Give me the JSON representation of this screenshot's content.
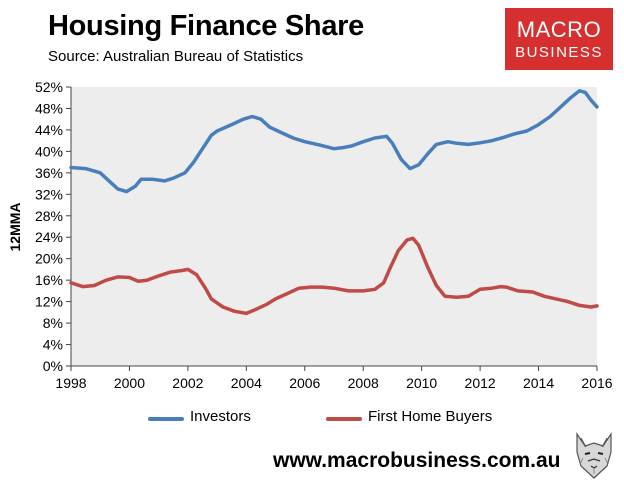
{
  "header": {
    "title": "Housing Finance Share",
    "subtitle": "Source: Australian Bureau of Statistics"
  },
  "logo": {
    "line1": "MACRO",
    "line2": "BUSINESS"
  },
  "footer": {
    "url": "www.macrobusiness.com.au"
  },
  "colors": {
    "investors": "#4a7ebb",
    "first_home_buyers": "#be4b48",
    "plot_bg": "#ededed",
    "brand_red": "#d62f2f"
  },
  "chart_data": {
    "type": "line",
    "title": "Housing Finance Share",
    "ylabel": "12MMA",
    "xlabel": "",
    "xlim": [
      1998,
      2016
    ],
    "ylim": [
      0,
      52
    ],
    "x_ticks": [
      1998,
      2000,
      2002,
      2004,
      2006,
      2008,
      2010,
      2012,
      2014,
      2016
    ],
    "x_tick_labels": [
      "1998",
      "2000",
      "2002",
      "2004",
      "2006",
      "2008",
      "2010",
      "2012",
      "2014",
      "2016"
    ],
    "y_ticks": [
      0,
      4,
      8,
      12,
      16,
      20,
      24,
      28,
      32,
      36,
      40,
      44,
      48,
      52
    ],
    "y_tick_labels": [
      "0%",
      "4%",
      "8%",
      "12%",
      "16%",
      "20%",
      "24%",
      "28%",
      "32%",
      "36%",
      "40%",
      "44%",
      "48%",
      "52%"
    ],
    "grid": false,
    "legend_position": "bottom",
    "series": [
      {
        "name": "Investors",
        "color": "#4a7ebb",
        "x": [
          1998.0,
          1998.5,
          1999.0,
          1999.3,
          1999.6,
          1999.9,
          2000.2,
          2000.4,
          2000.8,
          2001.2,
          2001.5,
          2001.9,
          2002.2,
          2002.5,
          2002.8,
          2003.0,
          2003.5,
          2003.9,
          2004.2,
          2004.5,
          2004.8,
          2005.2,
          2005.6,
          2006.0,
          2006.5,
          2007.0,
          2007.3,
          2007.6,
          2008.0,
          2008.4,
          2008.8,
          2009.0,
          2009.3,
          2009.6,
          2009.9,
          2010.2,
          2010.5,
          2010.9,
          2011.2,
          2011.6,
          2012.0,
          2012.4,
          2012.8,
          2013.2,
          2013.6,
          2014.0,
          2014.4,
          2014.8,
          2015.1,
          2015.4,
          2015.6,
          2015.8,
          2016.0
        ],
        "values": [
          37.0,
          36.8,
          36.0,
          34.5,
          33.0,
          32.5,
          33.5,
          34.8,
          34.8,
          34.5,
          35.0,
          36.0,
          38.0,
          40.5,
          43.0,
          43.8,
          45.0,
          46.0,
          46.5,
          46.0,
          44.5,
          43.5,
          42.5,
          41.8,
          41.2,
          40.5,
          40.7,
          41.0,
          41.8,
          42.5,
          42.8,
          41.5,
          38.5,
          36.8,
          37.5,
          39.5,
          41.3,
          41.8,
          41.5,
          41.3,
          41.6,
          42.0,
          42.6,
          43.3,
          43.8,
          45.0,
          46.5,
          48.5,
          50.0,
          51.3,
          51.0,
          49.5,
          48.3
        ]
      },
      {
        "name": "First Home Buyers",
        "color": "#be4b48",
        "x": [
          1998.0,
          1998.4,
          1998.8,
          1999.2,
          1999.6,
          2000.0,
          2000.3,
          2000.6,
          2001.0,
          2001.4,
          2001.8,
          2002.0,
          2002.3,
          2002.6,
          2002.8,
          2003.2,
          2003.6,
          2004.0,
          2004.3,
          2004.7,
          2005.0,
          2005.4,
          2005.8,
          2006.2,
          2006.6,
          2007.0,
          2007.5,
          2008.0,
          2008.4,
          2008.7,
          2008.9,
          2009.2,
          2009.5,
          2009.7,
          2009.9,
          2010.2,
          2010.5,
          2010.8,
          2011.2,
          2011.6,
          2012.0,
          2012.4,
          2012.7,
          2012.9,
          2013.3,
          2013.8,
          2014.2,
          2014.6,
          2015.0,
          2015.4,
          2015.8,
          2016.0
        ],
        "values": [
          15.5,
          14.8,
          15.0,
          16.0,
          16.6,
          16.5,
          15.8,
          16.0,
          16.8,
          17.5,
          17.8,
          18.0,
          17.0,
          14.5,
          12.5,
          11.0,
          10.2,
          9.8,
          10.5,
          11.5,
          12.5,
          13.5,
          14.5,
          14.7,
          14.7,
          14.5,
          14.0,
          14.0,
          14.3,
          15.5,
          18.0,
          21.5,
          23.5,
          23.8,
          22.5,
          18.5,
          15.0,
          13.0,
          12.8,
          13.0,
          14.3,
          14.5,
          14.8,
          14.7,
          14.0,
          13.8,
          13.0,
          12.5,
          12.0,
          11.3,
          11.0,
          11.2
        ]
      }
    ]
  }
}
